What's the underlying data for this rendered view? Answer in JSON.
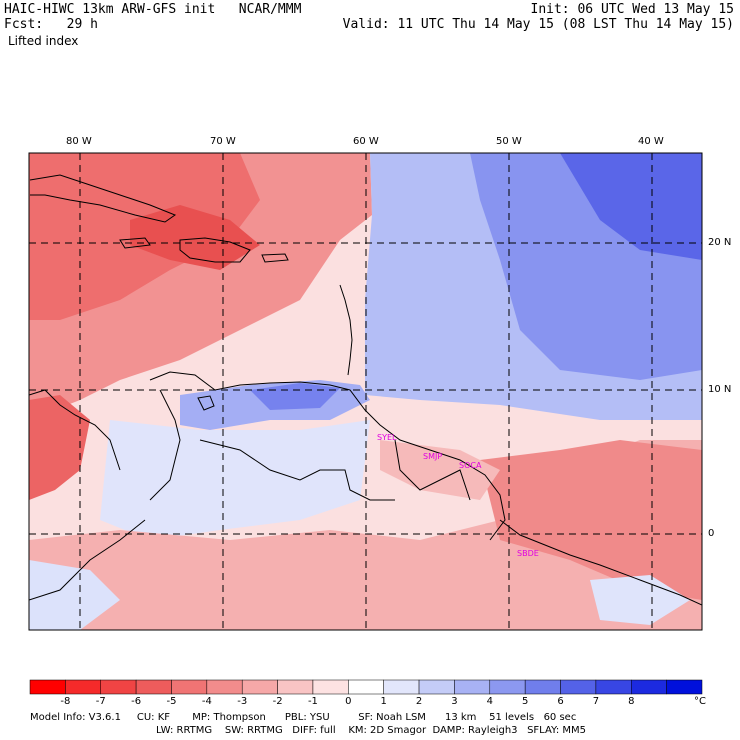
{
  "header": {
    "left_line1": "HAIC-HIWC 13km ARW-GFS init   NCAR/MMM",
    "left_line2": "Fcst:   29 h",
    "variable": "Lifted index",
    "right_line1": "Init: 06 UTC Wed 13 May 15",
    "right_line2": "Valid: 11 UTC Thu 14 May 15 (08 LST Thu 14 May 15)"
  },
  "map": {
    "lon_labels": [
      "80 W",
      "70 W",
      "60 W",
      "50 W",
      "40 W"
    ],
    "lat_labels": [
      "20 N",
      "10 N",
      "0"
    ],
    "stations": [
      "SYEL",
      "SMJP",
      "SOCA",
      "SBDE"
    ],
    "colors": {
      "neg_strong": "#e03434",
      "neg_mid": "#f07878",
      "neg_light": "#fbc8c8",
      "pos_light": "#d4dcfa",
      "pos_mid": "#8c9cf2",
      "pos_strong": "#3a46e6",
      "station": "#e000e0"
    }
  },
  "colorbar": {
    "labels": [
      "-8",
      "-7",
      "-6",
      "-5",
      "-4",
      "-3",
      "-2",
      "-1",
      "0",
      "1",
      "2",
      "3",
      "4",
      "5",
      "6",
      "7",
      "8"
    ],
    "unit": "°C",
    "colors": [
      "#ff0000",
      "#f52a2a",
      "#f04444",
      "#ee5c5c",
      "#f07474",
      "#f28c8c",
      "#f6a8a8",
      "#f9c4c4",
      "#fde2e2",
      "#ffffff",
      "#e2e6fb",
      "#c4ccf7",
      "#a8b2f4",
      "#8c98f0",
      "#707eec",
      "#5462e8",
      "#3846e4",
      "#1c2ae0",
      "#0010dc"
    ]
  },
  "footer": {
    "line1": "Model Info: V3.6.1     CU: KF       MP: Thompson      PBL: YSU         SF: Noah LSM      13 km    51 levels   60 sec",
    "line2": "LW: RRTMG    SW: RRTMG   DIFF: full    KM: 2D Smagor  DAMP: Rayleigh3   SFLAY: MM5"
  }
}
